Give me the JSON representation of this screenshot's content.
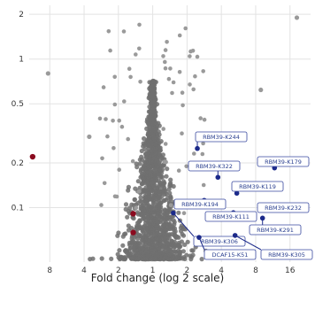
{
  "chart_data": {
    "type": "scatter",
    "title": "",
    "xlabel": "Fold change (log 2 scale)",
    "ylabel": "",
    "x_scale": "log2",
    "y_scale": "log",
    "x_ticks": [
      {
        "label": "8",
        "value": -3
      },
      {
        "label": "4",
        "value": -2
      },
      {
        "label": "2",
        "value": -1
      },
      {
        "label": "1",
        "value": 0
      },
      {
        "label": "2",
        "value": 1
      },
      {
        "label": "4",
        "value": 2
      },
      {
        "label": "8",
        "value": 3
      },
      {
        "label": "16",
        "value": 4
      }
    ],
    "y_ticks": [
      {
        "label": "2",
        "value": 2
      },
      {
        "label": "1",
        "value": 1
      },
      {
        "label": "0.5",
        "value": 0.5
      },
      {
        "label": "0.2",
        "value": 0.2
      },
      {
        "label": "0.1",
        "value": 0.1
      }
    ],
    "xlim": [
      -3.6,
      4.6
    ],
    "ylim": [
      0.043,
      2.3
    ],
    "grid": true,
    "colors": {
      "background_points": "#707070",
      "downregulated": "#8b0a1f",
      "highlighted": "#1c2a8a",
      "callout_border": "#3a4aa0"
    },
    "red_points": [
      {
        "x": -3.5,
        "y": 0.22
      },
      {
        "x": -0.57,
        "y": 0.091
      },
      {
        "x": -0.57,
        "y": 0.068
      }
    ],
    "extra_grey_points": [
      {
        "x": -3.05,
        "y": 0.8
      },
      {
        "x": -1.85,
        "y": 0.3
      },
      {
        "x": 4.2,
        "y": 1.9
      },
      {
        "x": 3.15,
        "y": 0.62
      }
    ],
    "labeled_points": [
      {
        "label": "RBM39-K244",
        "x": 1.3,
        "y": 0.25
      },
      {
        "label": "RBM39-K322",
        "x": 1.9,
        "y": 0.16
      },
      {
        "label": "RBM39-K179",
        "x": 3.55,
        "y": 0.185
      },
      {
        "label": "RBM39-K119",
        "x": 2.45,
        "y": 0.125
      },
      {
        "label": "RBM39-K194",
        "x": 1.5,
        "y": 0.112
      },
      {
        "label": "RBM39-K232",
        "x": 3.3,
        "y": 0.101
      },
      {
        "label": "RBM39-K111",
        "x": 2.35,
        "y": 0.0925
      },
      {
        "label": "RBM39-K291",
        "x": 3.2,
        "y": 0.085
      },
      {
        "label": "RBM39-K306",
        "x": 0.6,
        "y": 0.092
      },
      {
        "label": "DCAF15-K51",
        "x": 1.35,
        "y": 0.063
      },
      {
        "label": "RBM39-K305",
        "x": 2.4,
        "y": 0.065
      }
    ]
  }
}
